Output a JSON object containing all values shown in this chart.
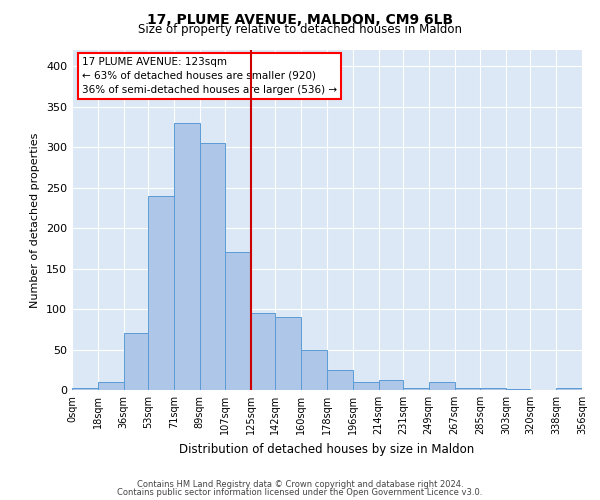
{
  "title": "17, PLUME AVENUE, MALDON, CM9 6LB",
  "subtitle": "Size of property relative to detached houses in Maldon",
  "xlabel": "Distribution of detached houses by size in Maldon",
  "ylabel": "Number of detached properties",
  "footer_line1": "Contains HM Land Registry data © Crown copyright and database right 2024.",
  "footer_line2": "Contains public sector information licensed under the Open Government Licence v3.0.",
  "annotation_line1": "17 PLUME AVENUE: 123sqm",
  "annotation_line2": "← 63% of detached houses are smaller (920)",
  "annotation_line3": "36% of semi-detached houses are larger (536) →",
  "red_line_x": 125,
  "bin_edges": [
    0,
    18,
    36,
    53,
    71,
    89,
    107,
    125,
    142,
    160,
    178,
    196,
    214,
    231,
    249,
    267,
    285,
    303,
    320,
    338,
    356
  ],
  "bar_heights": [
    2,
    10,
    70,
    240,
    330,
    305,
    170,
    95,
    90,
    50,
    25,
    10,
    12,
    3,
    10,
    3,
    3,
    1,
    0,
    2
  ],
  "bar_color": "#aec6e8",
  "bar_edge_color": "#5b9bd5",
  "red_line_color": "#cc0000",
  "background_color": "#dce8f5",
  "grid_color": "#ffffff",
  "ylim": [
    0,
    420
  ],
  "yticks": [
    0,
    50,
    100,
    150,
    200,
    250,
    300,
    350,
    400
  ]
}
